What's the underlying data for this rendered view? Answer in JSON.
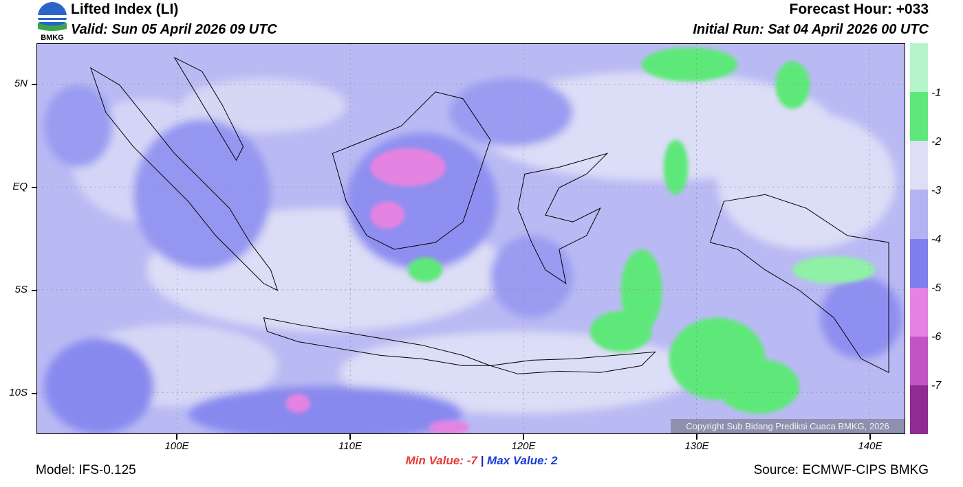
{
  "header": {
    "title": "Lifted Index (LI)",
    "valid": "Valid: Sun 05 April 2026 09 UTC",
    "forecast_hour": "Forecast Hour: +033",
    "initial_run": "Initial Run: Sat 04 April 2026 00 UTC",
    "logo_text": "BMKG"
  },
  "map": {
    "lat_labels": [
      "5N",
      "EQ",
      "5S",
      "10S"
    ],
    "lon_labels": [
      "100E",
      "110E",
      "120E",
      "130E",
      "140E"
    ],
    "copyright": "Copyright Sub Bidang Prediksi Cuaca BMKG, 2026"
  },
  "legend": {
    "labels": [
      "-1",
      "-2",
      "-3",
      "-4",
      "-5",
      "-6",
      "-7"
    ],
    "colors": [
      "#b6f5c9",
      "#5fe87a",
      "#dedff6",
      "#b3b3f2",
      "#7f7fef",
      "#e483e1",
      "#c255c4",
      "#8f2b92"
    ]
  },
  "footer": {
    "min_label": "Min Value:  -7",
    "separator": "|",
    "max_label": "Max Value:   2",
    "model": "Model: IFS-0.125",
    "source": "Source: ECMWF-CIPS BMKG"
  }
}
